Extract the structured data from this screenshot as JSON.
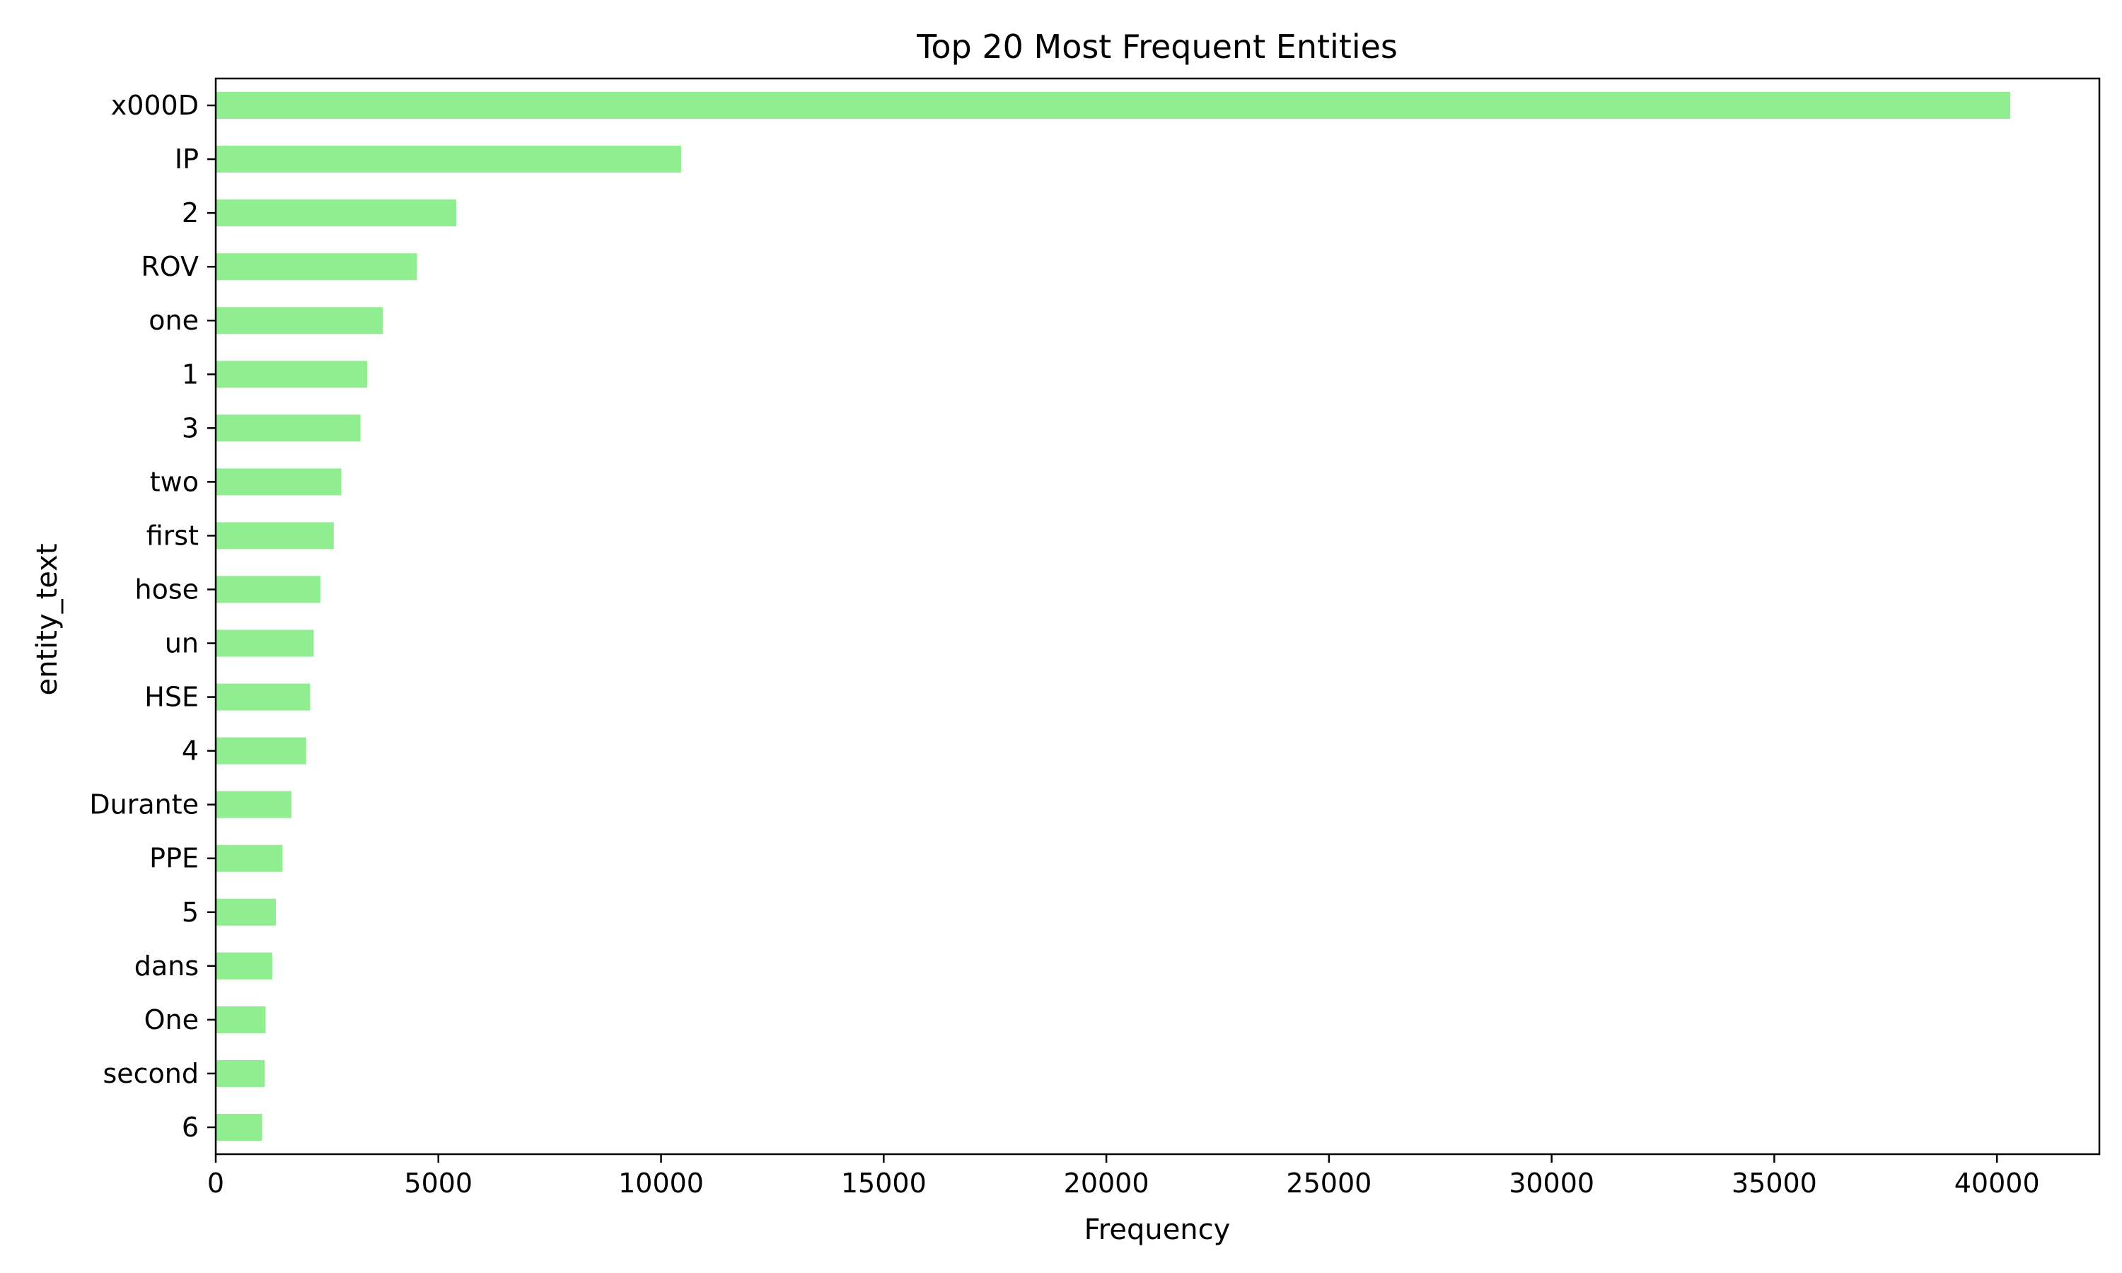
{
  "chart_data": {
    "type": "bar",
    "orientation": "horizontal",
    "title": "Top 20 Most Frequent Entities",
    "xlabel": "Frequency",
    "ylabel": "entity_text",
    "categories": [
      "x000D",
      "IP",
      "2",
      "ROV",
      "one",
      "1",
      "3",
      "two",
      "first",
      "hose",
      "un",
      "HSE",
      "4",
      "Durante",
      "PPE",
      "5",
      "dans",
      "One",
      "second",
      "6"
    ],
    "values": [
      40300,
      10450,
      5400,
      4520,
      3750,
      3400,
      3250,
      2820,
      2650,
      2350,
      2200,
      2120,
      2030,
      1700,
      1500,
      1350,
      1270,
      1120,
      1100,
      1040
    ],
    "xlim": [
      0,
      42300
    ],
    "xticks": [
      0,
      5000,
      10000,
      15000,
      20000,
      25000,
      30000,
      35000,
      40000
    ],
    "xtick_labels": [
      "0",
      "5000",
      "10000",
      "15000",
      "20000",
      "25000",
      "30000",
      "35000",
      "40000"
    ],
    "bar_color": "#90ee90",
    "grid": false,
    "legend": false
  }
}
